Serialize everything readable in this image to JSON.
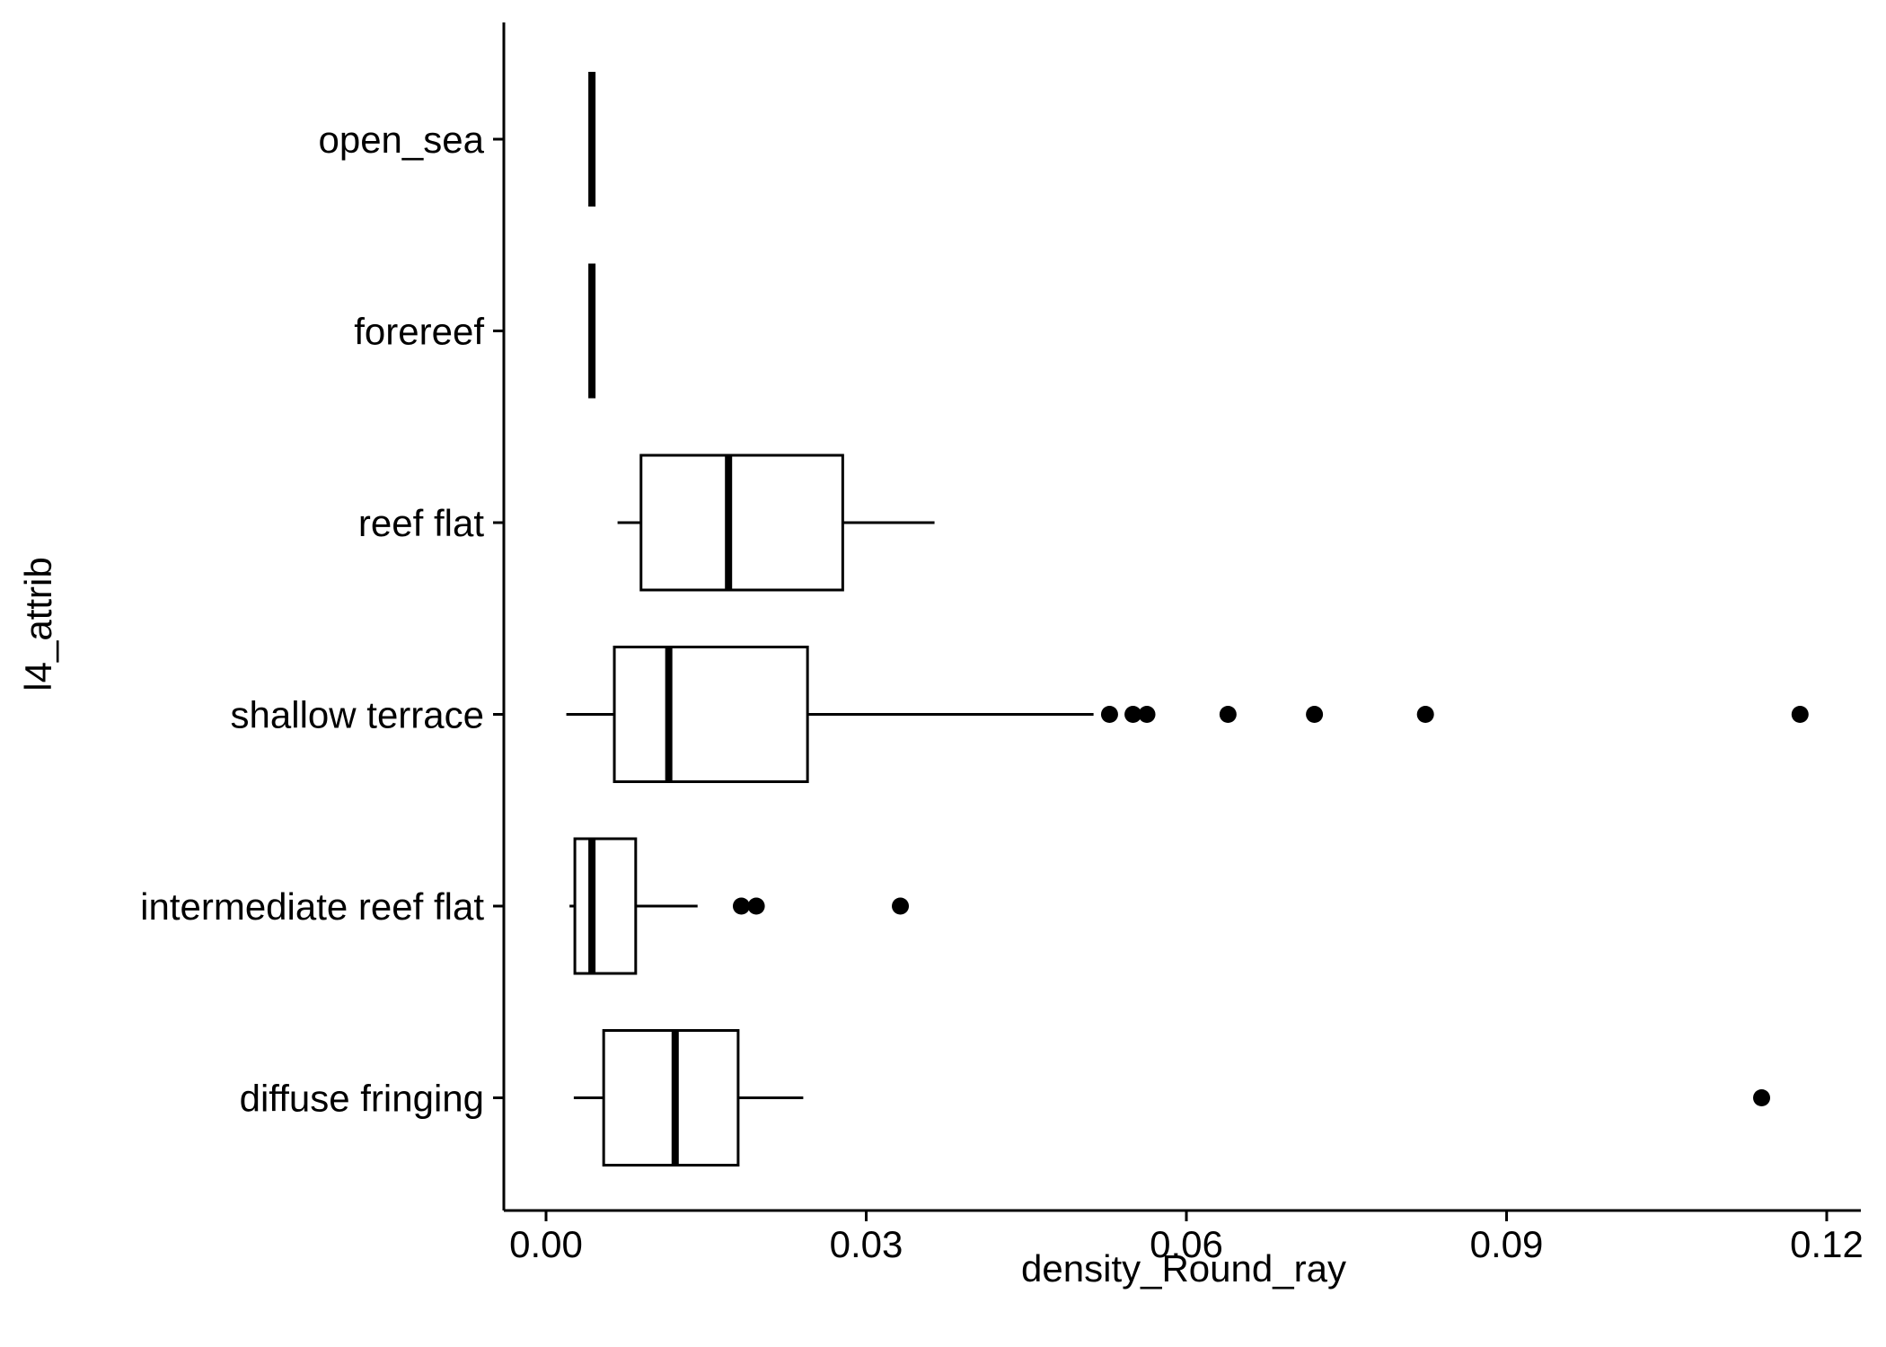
{
  "chart_data": {
    "type": "boxplot",
    "orientation": "horizontal",
    "title": "",
    "xlabel": "density_Round_ray",
    "ylabel": "l4_attrib",
    "xlim": [
      -0.004,
      0.1225
    ],
    "xticks": [
      0.0,
      0.03,
      0.06,
      0.09,
      0.12
    ],
    "xtick_labels": [
      "0.00",
      "0.03",
      "0.06",
      "0.09",
      "0.12"
    ],
    "categories": [
      "open_sea",
      "forereef",
      "reef flat",
      "shallow terrace",
      "intermediate reef flat",
      "diffuse fringing"
    ],
    "boxes": [
      {
        "category": "open_sea",
        "whisker_low": 0.0043,
        "q1": 0.0043,
        "median": 0.0043,
        "q3": 0.0043,
        "whisker_high": 0.0043,
        "outliers": []
      },
      {
        "category": "forereef",
        "whisker_low": 0.0043,
        "q1": 0.0043,
        "median": 0.0043,
        "q3": 0.0043,
        "whisker_high": 0.0043,
        "outliers": []
      },
      {
        "category": "reef flat",
        "whisker_low": 0.0067,
        "q1": 0.0089,
        "median": 0.0171,
        "q3": 0.0278,
        "whisker_high": 0.0364,
        "outliers": []
      },
      {
        "category": "shallow terrace",
        "whisker_low": 0.0019,
        "q1": 0.0064,
        "median": 0.0115,
        "q3": 0.0245,
        "whisker_high": 0.0513,
        "outliers": [
          0.0528,
          0.055,
          0.0563,
          0.0639,
          0.072,
          0.0824,
          0.1175
        ]
      },
      {
        "category": "intermediate reef flat",
        "whisker_low": 0.0022,
        "q1": 0.0027,
        "median": 0.0043,
        "q3": 0.0084,
        "whisker_high": 0.0142,
        "outliers": [
          0.0183,
          0.0197,
          0.0332
        ]
      },
      {
        "category": "diffuse fringing",
        "whisker_low": 0.0026,
        "q1": 0.0054,
        "median": 0.0121,
        "q3": 0.018,
        "whisker_high": 0.0241,
        "outliers": [
          0.1139
        ]
      }
    ],
    "grid": false,
    "legend": "none"
  }
}
